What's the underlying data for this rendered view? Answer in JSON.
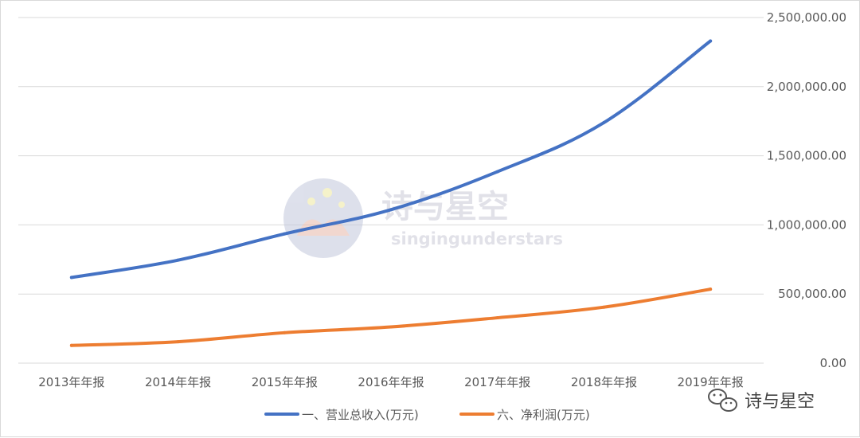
{
  "chart_data": {
    "type": "line",
    "categories": [
      "2013年年报",
      "2014年年报",
      "2015年年报",
      "2016年年报",
      "2017年年报",
      "2018年年报",
      "2019年年报"
    ],
    "series": [
      {
        "name": "一、营业总收入(万元)",
        "color": "#4472c4",
        "values": [
          620000,
          745000,
          935000,
          1110000,
          1385000,
          1740000,
          2330000
        ]
      },
      {
        "name": "六、净利润(万元)",
        "color": "#ed7d31",
        "values": [
          128000,
          155000,
          220000,
          262000,
          328000,
          405000,
          535000
        ]
      }
    ],
    "yticks": [
      "0.00",
      "500,000.00",
      "1,000,000.00",
      "1,500,000.00",
      "2,000,000.00",
      "2,500,000.00"
    ],
    "ylim": [
      0,
      2500000
    ],
    "y_axis_side": "right",
    "grid": true,
    "legend_position": "bottom",
    "title": "",
    "xlabel": "",
    "ylabel": ""
  },
  "watermark": {
    "title": "诗与星空",
    "subtitle": "singingunderstars"
  },
  "wechat_badge": {
    "icon": "wechat-icon",
    "text": "诗与星空"
  }
}
